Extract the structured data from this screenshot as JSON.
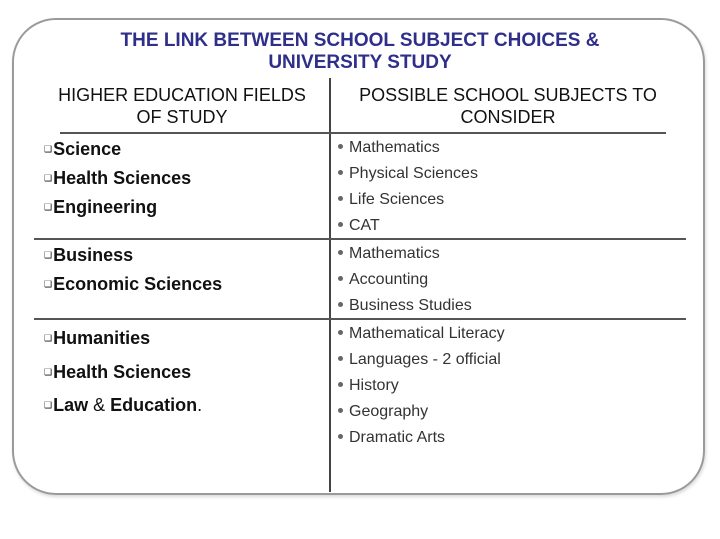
{
  "title": {
    "line1": "THE LINK BETWEEN SCHOOL SUBJECT CHOICES &",
    "line2": "UNIVERSITY STUDY"
  },
  "columns": {
    "left": {
      "line1": "HIGHER EDUCATION FIELDS",
      "line2": "OF STUDY"
    },
    "right": {
      "line1": "POSSIBLE SCHOOL SUBJECTS TO",
      "line2": "CONSIDER"
    }
  },
  "rows": [
    {
      "fields": [
        "Science",
        "Health Sciences",
        "Engineering"
      ],
      "subjects": [
        "Mathematics",
        "Physical Sciences",
        "Life Sciences",
        "CAT"
      ]
    },
    {
      "fields": [
        "Business",
        "Economic Sciences"
      ],
      "subjects": [
        "Mathematics",
        "Accounting",
        "Business Studies"
      ]
    },
    {
      "fields": [
        "Humanities",
        "Health Sciences"
      ],
      "last_field": {
        "part1": "Law",
        "amp": " & ",
        "part2": "Education",
        "period": "."
      },
      "subjects": [
        "Mathematical Literacy",
        "Languages - 2 official",
        "History",
        "Geography",
        "Dramatic Arts"
      ]
    }
  ],
  "icons": {
    "field_bullet": "hollow-square-bullet",
    "subject_bullet": "round-dot-bullet"
  },
  "colors": {
    "title": "#2f2f8a",
    "border": "#9a9a9a"
  }
}
